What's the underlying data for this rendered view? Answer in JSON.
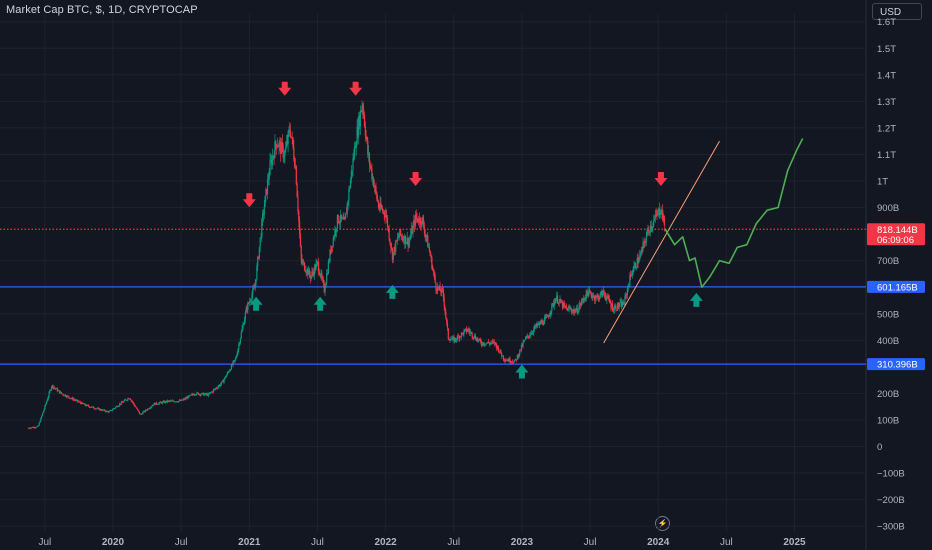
{
  "header": {
    "title": "Market Cap BTC, $, 1D, CRYPTOCAP",
    "currency": "USD"
  },
  "toolbar": {
    "lightning_icon": "lightning-icon"
  },
  "chart_data": {
    "type": "candlestick",
    "y_ticks": [
      "1.6T",
      "1.5T",
      "1.4T",
      "1.3T",
      "1.2T",
      "1.1T",
      "1T",
      "900B",
      "700B",
      "500B",
      "400B",
      "200B",
      "100B",
      "0",
      "−100B",
      "−200B",
      "−300B"
    ],
    "x_ticks": [
      "Jul",
      "2020",
      "Jul",
      "2021",
      "Jul",
      "2022",
      "Jul",
      "2023",
      "Jul",
      "2024",
      "Jul",
      "2025"
    ],
    "price_labels": [
      {
        "value": "818.144B",
        "sub": "06:09:06",
        "color": "#f23645"
      },
      {
        "value": "601.165B",
        "color": "#2962ff"
      },
      {
        "value": "310.396B",
        "color": "#2962ff"
      }
    ],
    "hlines": [
      {
        "value": 818.144,
        "color": "#f23645",
        "style": "dotted"
      },
      {
        "value": 601.165,
        "color": "#2962ff",
        "style": "solid"
      },
      {
        "value": 310.396,
        "color": "#2962ff",
        "style": "solid"
      }
    ],
    "ohlc_path": [
      [
        2019.38,
        70
      ],
      [
        2019.45,
        75
      ],
      [
        2019.5,
        150
      ],
      [
        2019.55,
        230
      ],
      [
        2019.62,
        200
      ],
      [
        2019.7,
        180
      ],
      [
        2019.8,
        155
      ],
      [
        2019.9,
        140
      ],
      [
        2019.97,
        130
      ],
      [
        2020.05,
        160
      ],
      [
        2020.12,
        185
      ],
      [
        2020.2,
        120
      ],
      [
        2020.3,
        160
      ],
      [
        2020.4,
        170
      ],
      [
        2020.5,
        172
      ],
      [
        2020.6,
        200
      ],
      [
        2020.7,
        195
      ],
      [
        2020.8,
        240
      ],
      [
        2020.9,
        330
      ],
      [
        2020.98,
        520
      ],
      [
        2021.04,
        600
      ],
      [
        2021.1,
        870
      ],
      [
        2021.15,
        1050
      ],
      [
        2021.2,
        1150
      ],
      [
        2021.26,
        1100
      ],
      [
        2021.3,
        1200
      ],
      [
        2021.34,
        1050
      ],
      [
        2021.38,
        700
      ],
      [
        2021.45,
        640
      ],
      [
        2021.5,
        690
      ],
      [
        2021.55,
        590
      ],
      [
        2021.6,
        750
      ],
      [
        2021.65,
        860
      ],
      [
        2021.7,
        840
      ],
      [
        2021.78,
        1150
      ],
      [
        2021.83,
        1300
      ],
      [
        2021.87,
        1100
      ],
      [
        2021.95,
        900
      ],
      [
        2022.0,
        880
      ],
      [
        2022.05,
        720
      ],
      [
        2022.1,
        800
      ],
      [
        2022.17,
        770
      ],
      [
        2022.22,
        860
      ],
      [
        2022.27,
        850
      ],
      [
        2022.32,
        740
      ],
      [
        2022.37,
        600
      ],
      [
        2022.42,
        580
      ],
      [
        2022.46,
        410
      ],
      [
        2022.5,
        400
      ],
      [
        2022.6,
        440
      ],
      [
        2022.7,
        390
      ],
      [
        2022.8,
        390
      ],
      [
        2022.87,
        330
      ],
      [
        2022.95,
        320
      ],
      [
        2023.02,
        400
      ],
      [
        2023.1,
        450
      ],
      [
        2023.18,
        480
      ],
      [
        2023.25,
        560
      ],
      [
        2023.32,
        520
      ],
      [
        2023.4,
        510
      ],
      [
        2023.48,
        580
      ],
      [
        2023.55,
        560
      ],
      [
        2023.6,
        580
      ],
      [
        2023.67,
        520
      ],
      [
        2023.75,
        540
      ],
      [
        2023.8,
        650
      ],
      [
        2023.87,
        720
      ],
      [
        2023.93,
        820
      ],
      [
        2023.97,
        850
      ],
      [
        2024.02,
        900
      ],
      [
        2024.05,
        820
      ]
    ],
    "trend_line": [
      [
        2023.6,
        390
      ],
      [
        2024.45,
        1150
      ]
    ],
    "projection": [
      [
        2024.05,
        820
      ],
      [
        2024.12,
        760
      ],
      [
        2024.18,
        790
      ],
      [
        2024.23,
        700
      ],
      [
        2024.27,
        710
      ],
      [
        2024.32,
        600
      ],
      [
        2024.38,
        640
      ],
      [
        2024.45,
        700
      ],
      [
        2024.52,
        690
      ],
      [
        2024.58,
        750
      ],
      [
        2024.65,
        760
      ],
      [
        2024.72,
        840
      ],
      [
        2024.8,
        890
      ],
      [
        2024.88,
        900
      ],
      [
        2024.95,
        1040
      ],
      [
        2025.02,
        1120
      ],
      [
        2025.06,
        1160
      ]
    ],
    "arrows_down": [
      [
        2021.0,
        920
      ],
      [
        2021.26,
        1340
      ],
      [
        2021.78,
        1340
      ],
      [
        2022.22,
        1000
      ],
      [
        2024.02,
        1000
      ]
    ],
    "arrows_up": [
      [
        2021.05,
        545
      ],
      [
        2021.52,
        545
      ],
      [
        2022.05,
        590
      ],
      [
        2023.0,
        290
      ],
      [
        2024.28,
        560
      ]
    ]
  }
}
